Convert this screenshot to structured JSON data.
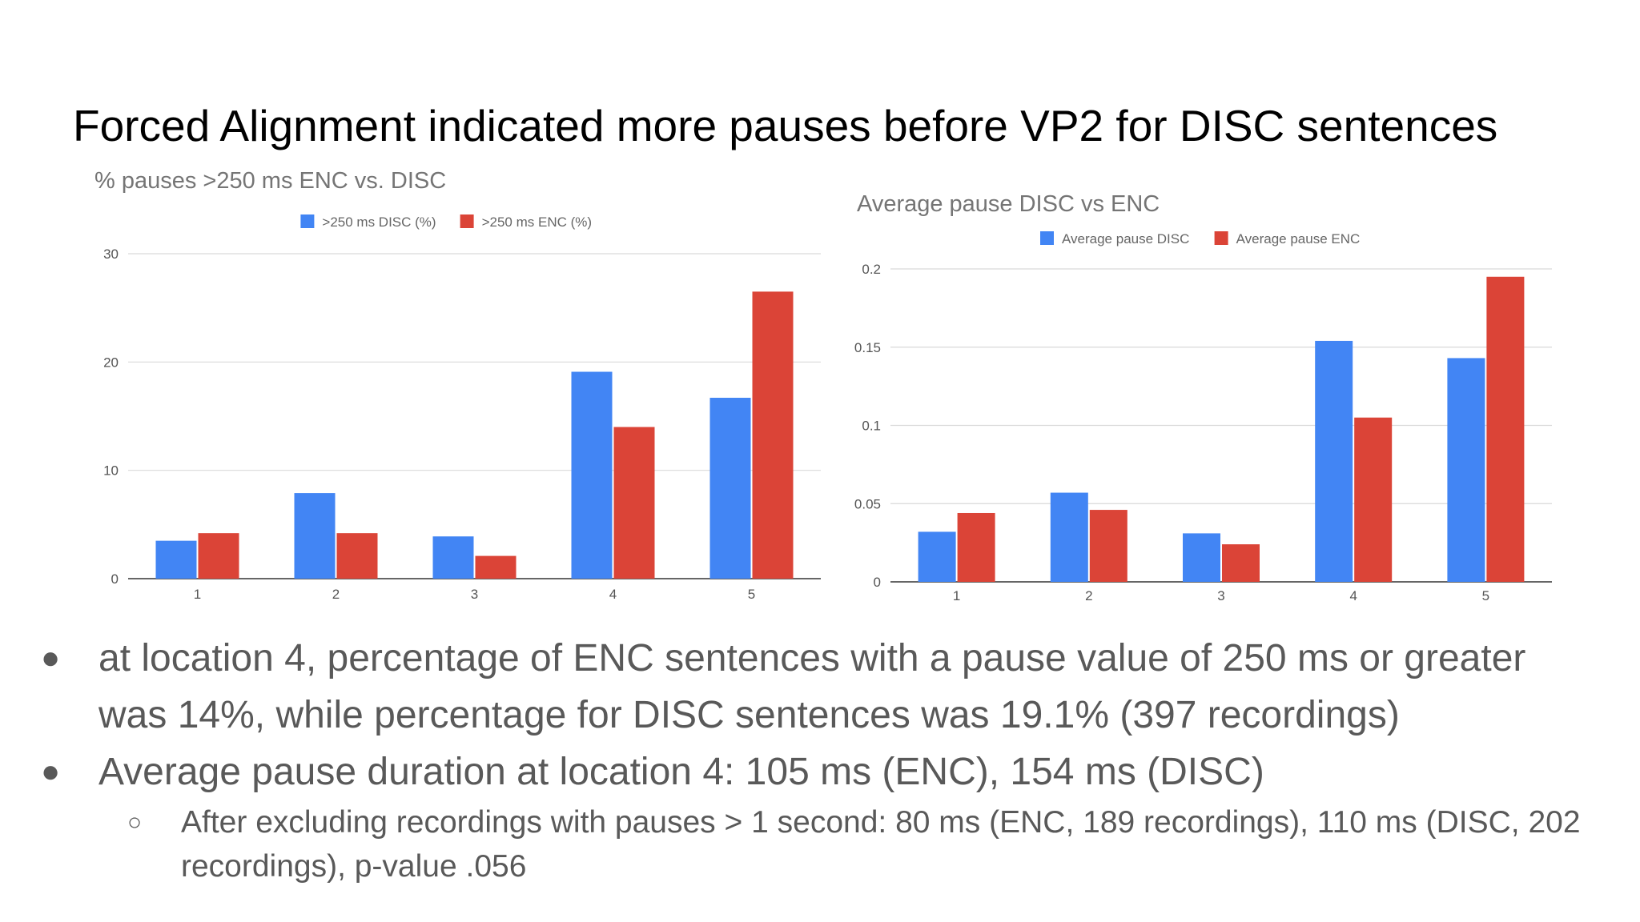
{
  "slide": {
    "title": "Forced Alignment indicated more pauses before VP2 for DISC sentences"
  },
  "colors": {
    "disc": "#4285f4",
    "enc": "#db4437"
  },
  "chart_data": [
    {
      "type": "bar",
      "title": "% pauses >250 ms ENC vs. DISC",
      "categories": [
        "1",
        "2",
        "3",
        "4",
        "5"
      ],
      "series": [
        {
          "name": ">250 ms DISC (%)",
          "color": "#4285f4",
          "values": [
            3.5,
            7.9,
            3.9,
            19.1,
            16.7
          ]
        },
        {
          "name": ">250 ms ENC (%)",
          "color": "#db4437",
          "values": [
            4.2,
            4.2,
            2.1,
            14.0,
            26.5
          ]
        }
      ],
      "ylim": [
        0,
        30
      ],
      "yticks": [
        "0",
        "10",
        "20",
        "30"
      ],
      "ytick_values": [
        0,
        10,
        20,
        30
      ],
      "grid": true,
      "legend": "top-center"
    },
    {
      "type": "bar",
      "title": "Average pause DISC vs ENC",
      "categories": [
        "1",
        "2",
        "3",
        "4",
        "5"
      ],
      "series": [
        {
          "name": "Average pause DISC",
          "color": "#4285f4",
          "values": [
            0.032,
            0.057,
            0.031,
            0.154,
            0.143
          ]
        },
        {
          "name": "Average pause ENC",
          "color": "#db4437",
          "values": [
            0.044,
            0.046,
            0.024,
            0.105,
            0.195
          ]
        }
      ],
      "ylim": [
        0,
        0.2
      ],
      "yticks": [
        "0",
        "0.05",
        "0.1",
        "0.15",
        "0.2"
      ],
      "ytick_values": [
        0,
        0.05,
        0.1,
        0.15,
        0.2
      ],
      "grid": true,
      "legend": "top-center"
    }
  ],
  "bullets": [
    {
      "line1": "at location 4, percentage of ENC sentences with a pause value of 250 ms or greater",
      "line2": "was 14%, while percentage for DISC sentences was 19.1% (397 recordings)"
    },
    {
      "line1": "Average pause duration at location 4: 105 ms (ENC), 154 ms (DISC)"
    }
  ],
  "sub_bullet": {
    "line1": "After excluding recordings with pauses > 1 second: 80 ms (ENC, 189 recordings), 110 ms (DISC, 202",
    "line2": "recordings), p-value .056"
  },
  "bullet_glyph": "●",
  "sub_bullet_glyph": "○"
}
